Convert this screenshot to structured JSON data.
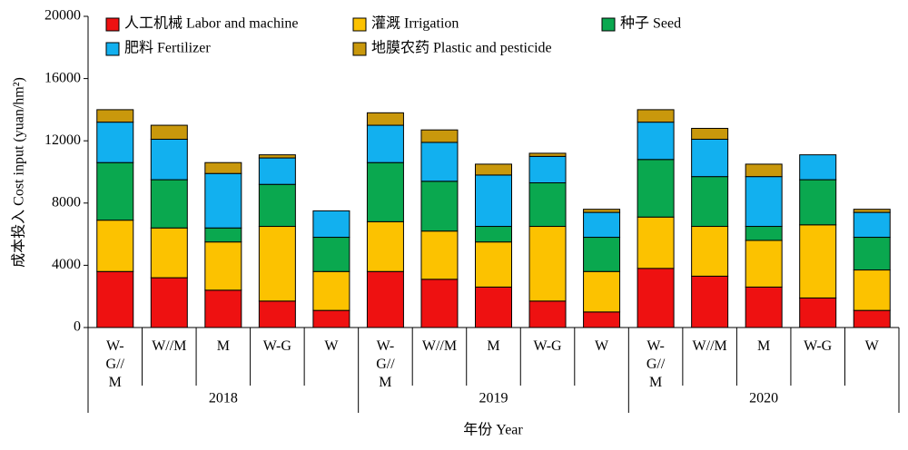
{
  "chart_data": {
    "type": "bar",
    "stacked": true,
    "ylabel": "成本投入 Cost input (yuan/hm²)",
    "xlabel": "年份 Year",
    "ylim": [
      0,
      20000
    ],
    "yticks": [
      0,
      4000,
      8000,
      12000,
      16000,
      20000
    ],
    "groups": [
      "2018",
      "2019",
      "2020"
    ],
    "categories": [
      "W-G//M",
      "W//M",
      "M",
      "W-G",
      "W",
      "W-G//M",
      "W//M",
      "M",
      "W-G",
      "W",
      "W-G//M",
      "W//M",
      "M",
      "W-G",
      "W"
    ],
    "series": [
      {
        "name": "人工机械 Labor and machine",
        "color": "#ee1111",
        "values": [
          3600,
          3200,
          2400,
          1700,
          1100,
          3600,
          3100,
          2600,
          1700,
          1000,
          3800,
          3300,
          2600,
          1900,
          1100
        ]
      },
      {
        "name": "灌溉 Irrigation",
        "color": "#fcc200",
        "values": [
          3300,
          3200,
          3100,
          4800,
          2500,
          3200,
          3100,
          2900,
          4800,
          2600,
          3300,
          3200,
          3000,
          4700,
          2600
        ]
      },
      {
        "name": "种子 Seed",
        "color": "#0aa84f",
        "values": [
          3700,
          3100,
          900,
          2700,
          2200,
          3800,
          3200,
          1000,
          2800,
          2200,
          3700,
          3200,
          900,
          2900,
          2100
        ]
      },
      {
        "name": "肥料 Fertilizer",
        "color": "#12b0ef",
        "values": [
          2600,
          2600,
          3500,
          1700,
          1700,
          2400,
          2500,
          3300,
          1700,
          1600,
          2400,
          2400,
          3200,
          1600,
          1600
        ]
      },
      {
        "name": "地膜农药 Plastic and pesticide",
        "color": "#c9980c",
        "values": [
          800,
          900,
          700,
          200,
          0,
          800,
          800,
          700,
          200,
          200,
          800,
          700,
          800,
          0,
          200
        ]
      }
    ]
  }
}
